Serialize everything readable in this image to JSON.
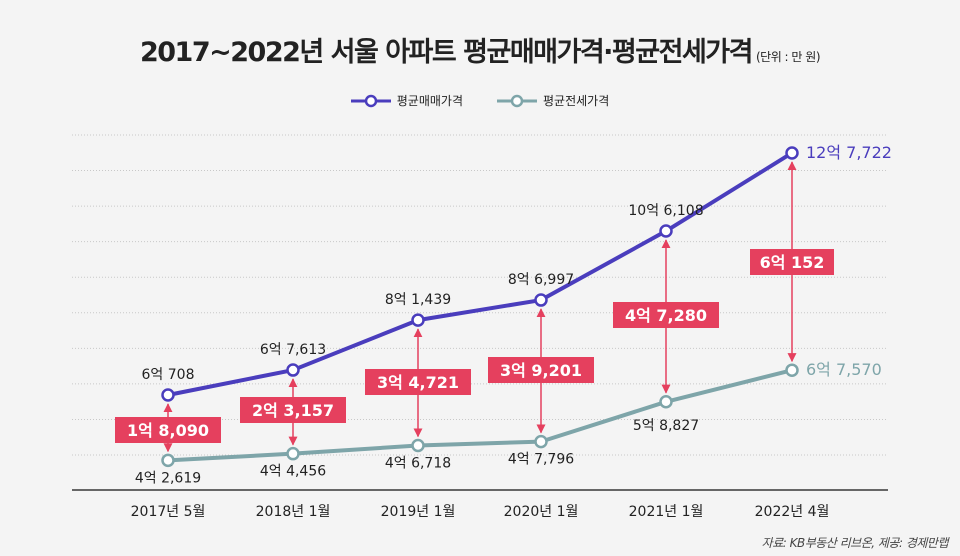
{
  "title": "2017~2022년 서울 아파트 평균매매가격·평균전세가격",
  "unit": "(단위 : 만 원)",
  "source": "자료: KB부동산 리브온, 제공: 경제만랩",
  "colors": {
    "sale": "#4a3dbd",
    "jeonse": "#7ea5a9",
    "diff": "#e5405e",
    "grid": "#c8c8c8",
    "axis": "#666666"
  },
  "chart_data": {
    "type": "line",
    "title": "2017~2022년 서울 아파트 평균매매가격·평균전세가격",
    "legend_position": "top",
    "categories": [
      "2017년 5월",
      "2018년 1월",
      "2019년 1월",
      "2020년 1월",
      "2021년 1월",
      "2022년 4월"
    ],
    "ylim": [
      34400,
      132700
    ],
    "grid": true,
    "series": [
      {
        "name": "평균매매가격",
        "values": [
          60708,
          67613,
          81439,
          86997,
          106108,
          127722
        ],
        "labels": [
          "6억 708",
          "6억 7,613",
          "8억 1,439",
          "8억 6,997",
          "10억 6,108",
          "12억 7,722"
        ]
      },
      {
        "name": "평균전세가격",
        "values": [
          42619,
          44456,
          46718,
          47796,
          58827,
          67570
        ],
        "labels": [
          "4억 2,619",
          "4억 4,456",
          "4억 6,718",
          "4억 7,796",
          "5억 8,827",
          "6억 7,570"
        ]
      }
    ],
    "differences": [
      18090,
      23157,
      34721,
      39201,
      47280,
      60152
    ],
    "difference_labels": [
      "1억 8,090",
      "2억 3,157",
      "3억 4,721",
      "3억 9,201",
      "4억 7,280",
      "6억 152"
    ]
  }
}
